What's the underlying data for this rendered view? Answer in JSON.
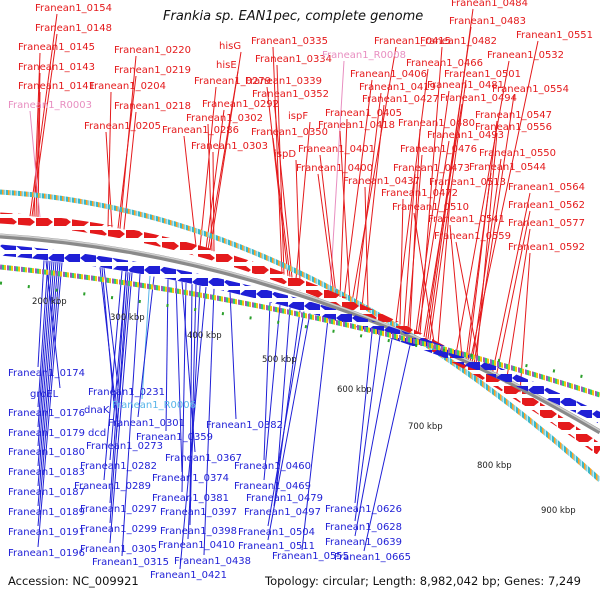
{
  "title": "Frankia sp. EAN1pec, complete genome",
  "footer": {
    "accession": "Accession: NC_009921",
    "summary": "Topology: circular; Length: 8,982,042 bp; Genes: 7,249"
  },
  "colors": {
    "forward": "#e41a1c",
    "reverse": "#1f1fd6",
    "rna_forward": "#e88ec0",
    "rna_reverse": "#56b4e9",
    "backbone": "#8a8a8a"
  },
  "ticks": [
    "200 kbp",
    "300 kbp",
    "400 kbp",
    "500 kbp",
    "600 kbp",
    "700 kbp",
    "800 kbp",
    "900 kbp"
  ],
  "top_labels": [
    "Franean1_0154",
    "Franean1_0148",
    "Franean1_0145",
    "Franean1_0143",
    "Franean1_0141",
    "Franean1_R0003",
    "Franean1_0220",
    "Franean1_0219",
    "Franean1_0204",
    "Franean1_0218",
    "Franean1_0205",
    "hisG",
    "hisE",
    "Franean1_0279",
    "Franean1_0292",
    "Franean1_0302",
    "Franean1_0286",
    "Franean1_0303",
    "Franean1_0335",
    "Franean1_0334",
    "Franean1_0339",
    "Franean1_0352",
    "ispF",
    "Franean1_0350",
    "ispD",
    "Franean1_R0008",
    "Franean1_0415",
    "Franean1_0406",
    "Franean1_0419",
    "Franean1_0427",
    "Franean1_0405",
    "Franean1_0418",
    "Franean1_0401",
    "Franean1_0400",
    "Franean1_0437",
    "Franean1_0472",
    "Franean1_0473",
    "Franean1_0476",
    "Franean1_0493",
    "Franean1_0480",
    "Franean1_0494",
    "Franean1_0481",
    "Franean1_0501",
    "Franean1_0466",
    "Franean1_0482",
    "Franean1_0483",
    "Franean1_0484",
    "Franean1_0551",
    "Franean1_0532",
    "Franean1_0554",
    "Franean1_0547",
    "Franean1_0556",
    "Franean1_0550",
    "Franean1_0544",
    "Franean1_0513",
    "Franean1_0510",
    "Franean1_0541",
    "Franean1_0559",
    "Franean1_0564",
    "Franean1_0562",
    "Franean1_0577",
    "Franean1_0592"
  ],
  "bottom_labels": [
    "Franean1_0174",
    "groEL",
    "Franean1_0176",
    "Franean1_0179",
    "Franean1_0180",
    "Franean1_0183",
    "Franean1_0187",
    "Franean1_0189",
    "Franean1_0191",
    "Franean1_0196",
    "Franean1_0231",
    "dnaK",
    "dcd",
    "Franean1_0273",
    "Franean1_0282",
    "Franean1_0289",
    "Franean1_0297",
    "Franean1_0299",
    "Franean1_0305",
    "Franean1_0315",
    "Franean1_R0006",
    "Franean1_0301",
    "Franean1_0359",
    "Franean1_0367",
    "Franean1_0374",
    "Franean1_0381",
    "Franean1_0397",
    "Franean1_0398",
    "Franean1_0410",
    "Franean1_0438",
    "Franean1_0421",
    "Franean1_0382",
    "Franean1_0460",
    "Franean1_0469",
    "Franean1_0479",
    "Franean1_0497",
    "Franean1_0504",
    "Franean1_0511",
    "Franean1_0555",
    "Franean1_0626",
    "Franean1_0628",
    "Franean1_0639",
    "Franean1_0665"
  ]
}
